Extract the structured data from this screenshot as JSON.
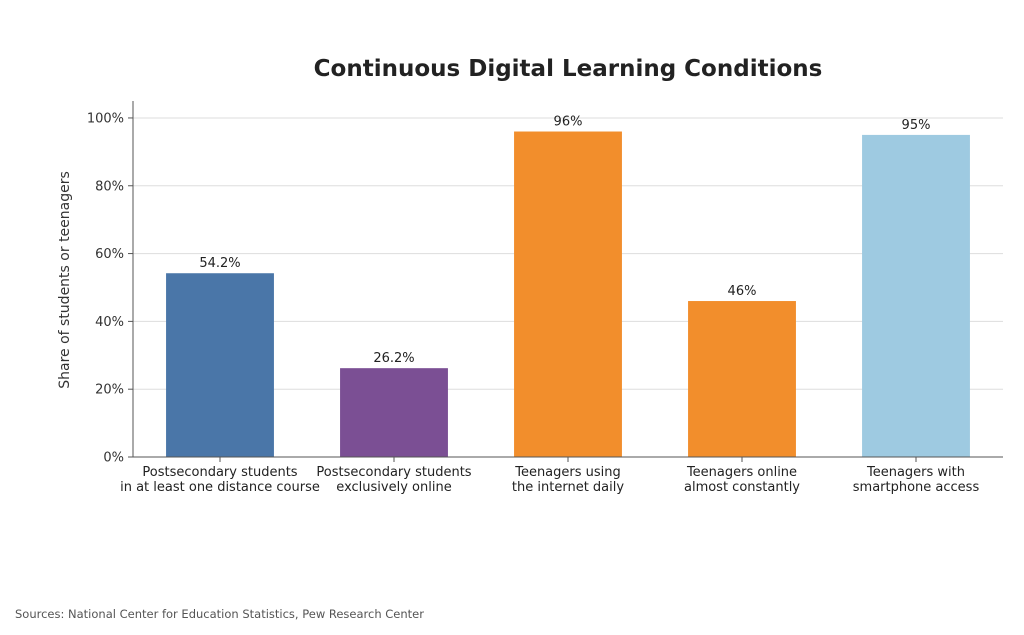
{
  "chart_data": {
    "type": "bar",
    "title": "Continuous Digital Learning Conditions",
    "ylabel": "Share of students or teenagers",
    "xlabel": "",
    "ylim": [
      0,
      105
    ],
    "yticks": [
      "0%",
      "20%",
      "40%",
      "60%",
      "80%",
      "100%"
    ],
    "ytick_values": [
      0,
      20,
      40,
      60,
      80,
      100
    ],
    "grid": true,
    "categories": [
      [
        "Postsecondary students",
        "in at least one distance course"
      ],
      [
        "Postsecondary students",
        "exclusively online"
      ],
      [
        "Teenagers using",
        "the internet daily"
      ],
      [
        "Teenagers online",
        "almost constantly"
      ],
      [
        "Teenagers with",
        "smartphone access"
      ]
    ],
    "values": [
      54.2,
      26.2,
      96,
      46,
      95
    ],
    "data_labels": [
      "54.2%",
      "26.2%",
      "96%",
      "46%",
      "95%"
    ],
    "colors": [
      "#4a76a8",
      "#7b4f94",
      "#f28e2c",
      "#f28e2c",
      "#9ecae1"
    ]
  },
  "source": "Sources: National Center for Education Statistics, Pew Research Center"
}
